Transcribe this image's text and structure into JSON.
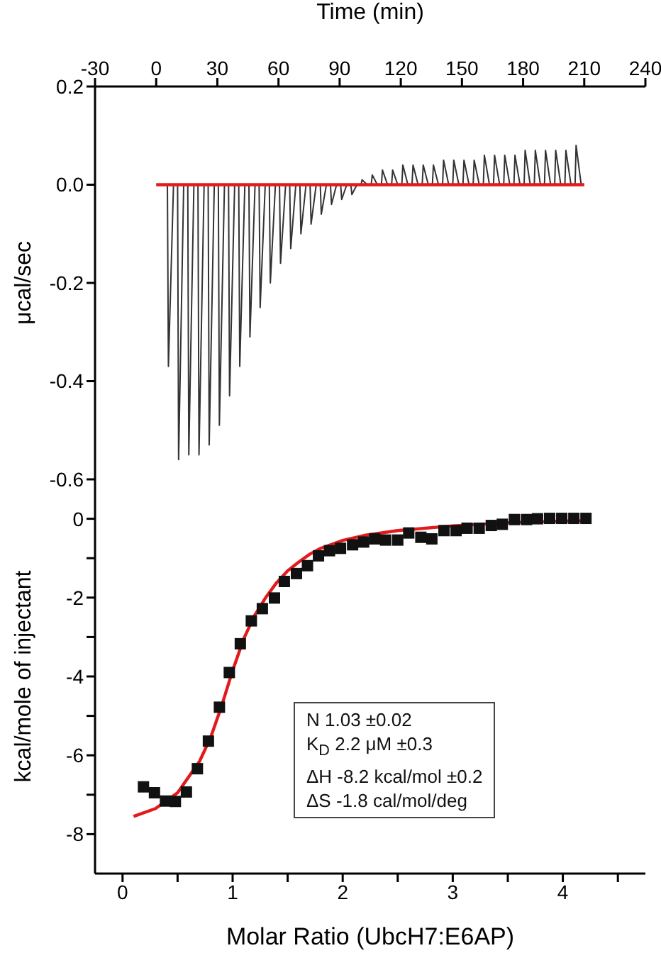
{
  "chart_data": [
    {
      "type": "line",
      "xlabel": "Time (min)",
      "ylabel": "μcal/sec",
      "xlim": [
        -30,
        240
      ],
      "xticks": [
        -30,
        0,
        30,
        60,
        90,
        120,
        150,
        180,
        210,
        240
      ],
      "ylim": [
        -0.6,
        0.2
      ],
      "yticks": [
        0.2,
        {
          "value": 0,
          "label": "0.0"
        },
        -0.2,
        -0.4,
        -0.6
      ],
      "grid": false,
      "series": [
        {
          "color": "#333333",
          "marker": "none",
          "line_style": "solid",
          "x": [
            5.5,
            6,
            8.5,
            10.5,
            11,
            13.5,
            15.5,
            16,
            18.5,
            20.5,
            21,
            23.5,
            25.5,
            26,
            28.5,
            30.5,
            31,
            33.5,
            35.5,
            36,
            38.5,
            40.5,
            41,
            43.5,
            45.5,
            46,
            48.5,
            50.5,
            51,
            53.5,
            55.5,
            56,
            58.5,
            60.5,
            61,
            63.5,
            65.5,
            66,
            68.5,
            70.5,
            71,
            73.5,
            75.5,
            76,
            78.5,
            80.5,
            81,
            83.5,
            85.5,
            86,
            88.5,
            90.5,
            91,
            93.5,
            95.5,
            96,
            98.5,
            100.5,
            101,
            103.5,
            105.5,
            106,
            108.5,
            110.5,
            111,
            113.5,
            115.5,
            116,
            118.5,
            120.5,
            121,
            123.5,
            125.5,
            126,
            128.5,
            130.5,
            131,
            133.5,
            135.5,
            136,
            138.5,
            140.5,
            141,
            143.5,
            145.5,
            146,
            148.5,
            150.5,
            151,
            153.5,
            155.5,
            156,
            158.5,
            160.5,
            161,
            163.5,
            165.5,
            166,
            168.5,
            170.5,
            171,
            173.5,
            175.5,
            176,
            178.5,
            180.5,
            181,
            183.5,
            185.5,
            186,
            188.5,
            190.5,
            191,
            193.5,
            195.5,
            196,
            198.5,
            200.5,
            201,
            203.5,
            205.5,
            206,
            208.5
          ],
          "values": [
            0,
            -0.37,
            0,
            0,
            -0.56,
            0,
            0,
            -0.55,
            0,
            0,
            -0.55,
            0,
            0,
            -0.53,
            0,
            0,
            -0.49,
            0,
            0,
            -0.43,
            0,
            0,
            -0.37,
            0,
            0,
            -0.31,
            0,
            0,
            -0.25,
            0,
            0,
            -0.2,
            0,
            0,
            -0.16,
            0,
            0,
            -0.13,
            0,
            0,
            -0.1,
            0,
            0,
            -0.08,
            0,
            0,
            -0.06,
            0,
            0,
            -0.04,
            0,
            0,
            -0.03,
            0,
            0,
            -0.02,
            0,
            0,
            0.01,
            0,
            0,
            0.02,
            0,
            0,
            0.03,
            0,
            0,
            0.03,
            0,
            0,
            0.04,
            0,
            0,
            0.04,
            0,
            0,
            0.04,
            0,
            0,
            0.04,
            0,
            0,
            0.05,
            0,
            0,
            0.05,
            0,
            0,
            0.05,
            0,
            0,
            0.05,
            0,
            0,
            0.06,
            0,
            0,
            0.06,
            0,
            0,
            0.06,
            0,
            0,
            0.06,
            0,
            0,
            0.07,
            0,
            0,
            0.07,
            0,
            0,
            0.07,
            0,
            0,
            0.07,
            0,
            0,
            0.07,
            0,
            0,
            0.08,
            0
          ]
        },
        {
          "color": "#e31a1c",
          "marker": "none",
          "line_style": "solid",
          "x": [
            0,
            210
          ],
          "values": [
            0,
            0
          ]
        }
      ]
    },
    {
      "type": "scatter",
      "xlabel": "Molar Ratio (UbcH7:E6AP)",
      "ylabel": "kcal/mole of injectant",
      "xlim": [
        -0.25,
        4.75
      ],
      "xticks": [
        0,
        {
          "value": 0.5,
          "label": null
        },
        1,
        {
          "value": 1.5,
          "label": null
        },
        2,
        {
          "value": 2.5,
          "label": null
        },
        3,
        {
          "value": 3.5,
          "label": null
        },
        4,
        {
          "value": 4.5,
          "label": null
        }
      ],
      "ylim": [
        -9,
        1
      ],
      "yticks": [
        0,
        {
          "value": -1,
          "label": null
        },
        -2,
        {
          "value": -3,
          "label": null
        },
        -4,
        {
          "value": -5,
          "label": null
        },
        -6,
        {
          "value": -7,
          "label": null
        },
        -8
      ],
      "grid": false,
      "annotations": [
        "N 1.03 ±0.02",
        "K$_{D}$ 2.2 μM ±0.3",
        "ΔH -8.2 kcal/mol ±0.2",
        "ΔS -1.8 cal/mol/deg"
      ],
      "series": [
        {
          "color": "#111111",
          "marker": "square",
          "x": [
            0.19,
            0.29,
            0.39,
            0.48,
            0.58,
            0.68,
            0.78,
            0.88,
            0.97,
            1.07,
            1.17,
            1.27,
            1.38,
            1.47,
            1.58,
            1.68,
            1.78,
            1.88,
            1.98,
            2.09,
            2.19,
            2.29,
            2.39,
            2.5,
            2.6,
            2.71,
            2.81,
            2.92,
            3.03,
            3.13,
            3.24,
            3.35,
            3.45,
            3.56,
            3.67,
            3.77,
            3.88,
            3.99,
            4.1,
            4.21
          ],
          "values": [
            -6.8,
            -6.95,
            -7.16,
            -7.17,
            -6.93,
            -6.34,
            -5.64,
            -4.78,
            -3.9,
            -3.17,
            -2.59,
            -2.28,
            -2.01,
            -1.59,
            -1.39,
            -1.19,
            -0.94,
            -0.81,
            -0.75,
            -0.66,
            -0.59,
            -0.51,
            -0.54,
            -0.54,
            -0.36,
            -0.47,
            -0.51,
            -0.3,
            -0.3,
            -0.24,
            -0.24,
            -0.17,
            -0.14,
            -0.02,
            -0.02,
            0,
            0.01,
            0.01,
            0.01,
            0.01
          ]
        },
        {
          "type": "line",
          "color": "#e31a1c",
          "marker": "none",
          "line_style": "solid",
          "x": [
            0.1,
            0.3,
            0.5,
            0.7,
            0.8,
            0.9,
            1,
            1.1,
            1.2,
            1.3,
            1.4,
            1.5,
            1.6,
            1.7,
            1.8,
            2,
            2.2,
            2.5,
            3,
            3.5,
            4,
            4.25
          ],
          "values": [
            -7.55,
            -7.35,
            -6.95,
            -6.15,
            -5.55,
            -4.75,
            -3.85,
            -3.05,
            -2.45,
            -2,
            -1.62,
            -1.32,
            -1.1,
            -0.9,
            -0.75,
            -0.55,
            -0.42,
            -0.3,
            -0.18,
            -0.1,
            -0.06,
            -0.05
          ]
        }
      ]
    }
  ]
}
